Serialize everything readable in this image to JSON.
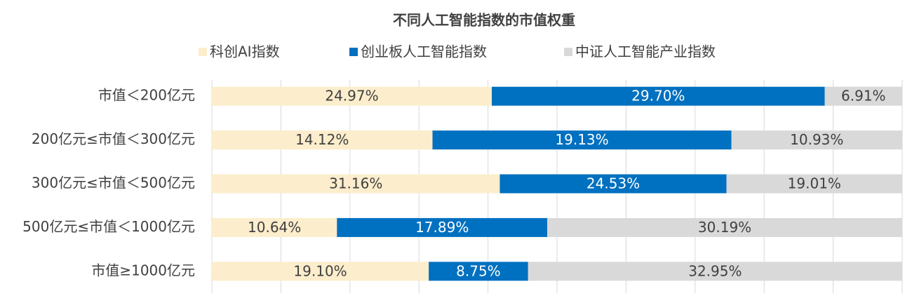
{
  "chart_data": {
    "type": "bar",
    "orientation": "horizontal",
    "stack": "percent",
    "title": "不同人工智能指数的市值权重",
    "categories": [
      "市值＜200亿元",
      "200亿元≤市值＜300亿元",
      "300亿元≤市值＜500亿元",
      "500亿元≤市值＜1000亿元",
      "市值≥1000亿元"
    ],
    "series": [
      {
        "name": "科创AI指数",
        "color": "#fcedcc",
        "label_color": "#404040",
        "values": [
          24.97,
          14.12,
          31.16,
          10.64,
          19.1
        ],
        "value_labels": [
          "24.97%",
          "14.12%",
          "31.16%",
          "10.64%",
          "19.10%"
        ]
      },
      {
        "name": "创业板人工智能指数",
        "color": "#0070c0",
        "label_color": "#ffffff",
        "values": [
          29.7,
          19.13,
          24.53,
          17.89,
          8.75
        ],
        "value_labels": [
          "29.70%",
          "19.13%",
          "24.53%",
          "17.89%",
          "8.75%"
        ]
      },
      {
        "name": "中证人工智能产业指数",
        "color": "#d9d9d9",
        "label_color": "#404040",
        "values": [
          6.91,
          10.93,
          19.01,
          30.19,
          32.95
        ],
        "value_labels": [
          "6.91%",
          "10.93%",
          "19.01%",
          "30.19%",
          "32.95%"
        ]
      }
    ],
    "xlim": [
      0,
      100
    ],
    "xticks": [
      0,
      10,
      20,
      30,
      40,
      50,
      60,
      70,
      80,
      90,
      100
    ],
    "grid": true,
    "legend": "top"
  }
}
